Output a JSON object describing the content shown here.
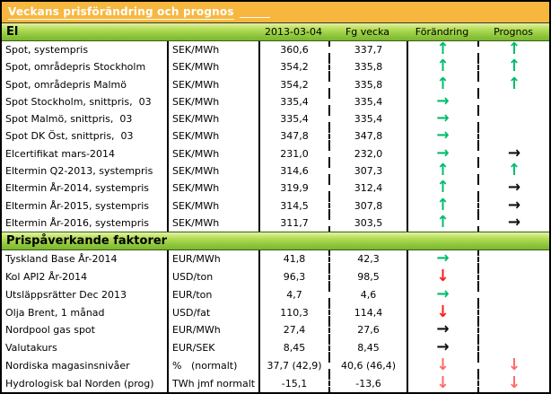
{
  "title": "Veckans prisförändring och prognos",
  "columns": {
    "date": "2013-03-04",
    "prev": "Fg vecka",
    "change": "Förändring",
    "forecast": "Prognos"
  },
  "colors": {
    "green": "#00bd6e",
    "red": "#fe1c1c",
    "lightred": "#ff6a6a",
    "black": "#111111"
  },
  "arrow_glyphs": {
    "up": "↑",
    "right": "→",
    "down": "↓"
  },
  "sections": [
    {
      "header": "El",
      "rows": [
        {
          "label": "Spot, systempris",
          "unit": "SEK/MWh",
          "current": "360,6",
          "prev": "337,7",
          "change": {
            "dir": "up",
            "color": "green"
          },
          "forecast": {
            "dir": "up",
            "color": "green"
          }
        },
        {
          "label": "Spot, områdepris Stockholm",
          "unit": "SEK/MWh",
          "current": "354,2",
          "prev": "335,8",
          "change": {
            "dir": "up",
            "color": "green"
          },
          "forecast": {
            "dir": "up",
            "color": "green"
          }
        },
        {
          "label": "Spot, områdepris Malmö",
          "unit": "SEK/MWh",
          "current": "354,2",
          "prev": "335,8",
          "change": {
            "dir": "up",
            "color": "green"
          },
          "forecast": {
            "dir": "up",
            "color": "green"
          }
        },
        {
          "label": "Spot Stockholm, snittpris,  03",
          "unit": "SEK/MWh",
          "current": "335,4",
          "prev": "335,4",
          "change": {
            "dir": "right",
            "color": "green"
          },
          "forecast": null
        },
        {
          "label": "Spot Malmö, snittpris,  03",
          "unit": "SEK/MWh",
          "current": "335,4",
          "prev": "335,4",
          "change": {
            "dir": "right",
            "color": "green"
          },
          "forecast": null
        },
        {
          "label": "Spot DK Öst, snittpris,  03",
          "unit": "SEK/MWh",
          "current": "347,8",
          "prev": "347,8",
          "change": {
            "dir": "right",
            "color": "green"
          },
          "forecast": null
        },
        {
          "label": "Elcertifikat mars-2014",
          "unit": "SEK/MWh",
          "current": "231,0",
          "prev": "232,0",
          "change": {
            "dir": "right",
            "color": "green"
          },
          "forecast": {
            "dir": "right",
            "color": "black"
          }
        },
        {
          "label": "Eltermin Q2-2013, systempris",
          "unit": "SEK/MWh",
          "current": "314,6",
          "prev": "307,3",
          "change": {
            "dir": "up",
            "color": "green"
          },
          "forecast": {
            "dir": "up",
            "color": "green"
          }
        },
        {
          "label": "Eltermin År-2014, systempris",
          "unit": "SEK/MWh",
          "current": "319,9",
          "prev": "312,4",
          "change": {
            "dir": "up",
            "color": "green"
          },
          "forecast": {
            "dir": "right",
            "color": "black"
          }
        },
        {
          "label": "Eltermin År-2015, systempris",
          "unit": "SEK/MWh",
          "current": "314,5",
          "prev": "307,8",
          "change": {
            "dir": "up",
            "color": "green"
          },
          "forecast": {
            "dir": "right",
            "color": "black"
          }
        },
        {
          "label": "Eltermin År-2016, systempris",
          "unit": "SEK/MWh",
          "current": "311,7",
          "prev": "303,5",
          "change": {
            "dir": "up",
            "color": "green"
          },
          "forecast": {
            "dir": "right",
            "color": "black"
          }
        }
      ]
    },
    {
      "header": "Prispåverkande faktorer",
      "rows": [
        {
          "label": "Tyskland Base År-2014",
          "unit": "EUR/MWh",
          "current": "41,8",
          "prev": "42,3",
          "change": {
            "dir": "right",
            "color": "green"
          },
          "forecast": null
        },
        {
          "label": "Kol API2 År-2014",
          "unit": "USD/ton",
          "current": "96,3",
          "prev": "98,5",
          "change": {
            "dir": "down",
            "color": "red"
          },
          "forecast": null
        },
        {
          "label": "Utsläppsrätter Dec 2013",
          "unit": "EUR/ton",
          "current": "4,7",
          "prev": "4,6",
          "change": {
            "dir": "right",
            "color": "green"
          },
          "forecast": null
        },
        {
          "label": "Olja Brent, 1 månad",
          "unit": "USD/fat",
          "current": "110,3",
          "prev": "114,4",
          "change": {
            "dir": "down",
            "color": "red"
          },
          "forecast": null
        },
        {
          "label": "Nordpool gas spot",
          "unit": "EUR/MWh",
          "current": "27,4",
          "prev": "27,6",
          "change": {
            "dir": "right",
            "color": "black"
          },
          "forecast": null
        },
        {
          "label": "Valutakurs",
          "unit": "EUR/SEK",
          "current": "8,45",
          "prev": "8,45",
          "change": {
            "dir": "right",
            "color": "black"
          },
          "forecast": null
        },
        {
          "label": "Nordiska magasinsnivåer",
          "unit": "%   (normalt)",
          "current": "37,7 (42,9)",
          "prev": "40,6 (46,4)",
          "change": {
            "dir": "down",
            "color": "lightred"
          },
          "forecast": {
            "dir": "down",
            "color": "lightred"
          }
        },
        {
          "label": "Hydrologisk bal Norden (prog)",
          "unit": "TWh jmf normalt",
          "current": "-15,1",
          "prev": "-13,6",
          "change": {
            "dir": "down",
            "color": "lightred"
          },
          "forecast": {
            "dir": "down",
            "color": "lightred"
          }
        }
      ]
    }
  ]
}
